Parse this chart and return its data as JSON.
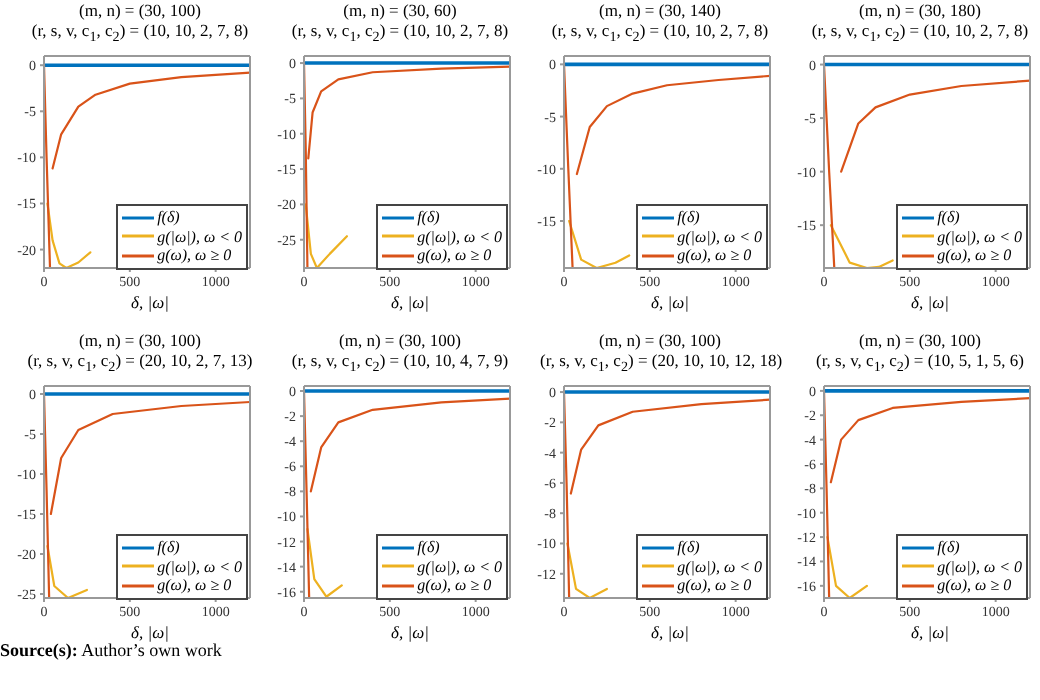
{
  "chart_data": [
    {
      "type": "line",
      "title": "(m, n) = (30, 100)",
      "subtitle": "(r, s, v, c$_{1}$, c$_{2}$) = (10, 10, 2, 7, 8)",
      "xlabel": "δ, |ω|",
      "xlim": [
        0,
        1200
      ],
      "xticks": [
        0,
        500,
        1000
      ],
      "ylim": [
        -22,
        1
      ],
      "yticks": [
        0,
        -5,
        -10,
        -15,
        -20
      ],
      "legend": "bottom right",
      "series": [
        {
          "name": "f(δ)",
          "color": "#0072bd",
          "x": [
            0,
            1200
          ],
          "values": [
            0,
            0
          ]
        },
        {
          "name": "g(|ω|), ω < 0",
          "color": "#edb120",
          "x": [
            20,
            50,
            90,
            130,
            200,
            270
          ],
          "values": [
            -15,
            -19,
            -21.5,
            -22,
            -21.4,
            -20.3
          ]
        },
        {
          "name": "g(ω), ω ≥ 0",
          "color": "#d95319",
          "x": [
            0,
            15,
            35,
            40,
            50,
            100,
            200,
            300,
            500,
            800,
            1200
          ],
          "values": [
            0,
            -10,
            -22,
            null,
            -11.2,
            -7.5,
            -4.5,
            -3.2,
            -2,
            -1.3,
            -0.8
          ]
        }
      ]
    },
    {
      "type": "line",
      "title": "(m, n) = (30, 60)",
      "subtitle": "(r, s, v, c$_{1}$, c$_{2}$) = (10, 10, 2, 7, 8)",
      "xlabel": "δ, |ω|",
      "xlim": [
        0,
        1200
      ],
      "xticks": [
        0,
        500,
        1000
      ],
      "ylim": [
        -29,
        1
      ],
      "yticks": [
        0,
        -5,
        -10,
        -15,
        -20,
        -25
      ],
      "legend": "bottom right",
      "series": [
        {
          "name": "f(δ)",
          "color": "#0072bd",
          "x": [
            0,
            1200
          ],
          "values": [
            0,
            0
          ]
        },
        {
          "name": "g(|ω|), ω < 0",
          "color": "#edb120",
          "x": [
            10,
            40,
            75,
            150,
            250
          ],
          "values": [
            -20,
            -27,
            -29,
            -27,
            -24.5
          ]
        },
        {
          "name": "g(ω), ω ≥ 0",
          "color": "#d95319",
          "x": [
            0,
            10,
            20,
            22,
            25,
            50,
            100,
            200,
            400,
            800,
            1200
          ],
          "values": [
            0,
            -12,
            -29,
            null,
            -13.5,
            -7,
            -4,
            -2.3,
            -1.3,
            -0.8,
            -0.5
          ]
        }
      ]
    },
    {
      "type": "line",
      "title": "(m, n) = (30, 140)",
      "subtitle": "(r, s, v, c$_{1}$, c$_{2}$) = (10, 10, 2, 7, 8)",
      "xlabel": "δ, |ω|",
      "xlim": [
        0,
        1200
      ],
      "xticks": [
        0,
        500,
        1000
      ],
      "ylim": [
        -19.5,
        0.8
      ],
      "yticks": [
        0,
        -5,
        -10,
        -15
      ],
      "legend": "bottom right",
      "series": [
        {
          "name": "f(δ)",
          "color": "#0072bd",
          "x": [
            0,
            1200
          ],
          "values": [
            0,
            0
          ]
        },
        {
          "name": "g(|ω|), ω < 0",
          "color": "#edb120",
          "x": [
            30,
            100,
            190,
            300,
            380
          ],
          "values": [
            -15,
            -18.7,
            -19.5,
            -19,
            -18.3
          ]
        },
        {
          "name": "g(ω), ω ≥ 0",
          "color": "#d95319",
          "x": [
            0,
            25,
            50,
            60,
            75,
            150,
            250,
            400,
            600,
            900,
            1200
          ],
          "values": [
            0,
            -10,
            -19.5,
            null,
            -10.5,
            -6,
            -4,
            -2.8,
            -2,
            -1.5,
            -1.1
          ]
        }
      ]
    },
    {
      "type": "line",
      "title": "(m, n) = (30, 180)",
      "subtitle": "(r, s, v, c$_{1}$, c$_{2}$) = (10, 10, 2, 7, 8)",
      "xlabel": "δ, |ω|",
      "xlim": [
        0,
        1200
      ],
      "xticks": [
        0,
        500,
        1000
      ],
      "ylim": [
        -19,
        0.8
      ],
      "yticks": [
        0,
        -5,
        -10,
        -15
      ],
      "legend": "bottom right",
      "series": [
        {
          "name": "f(δ)",
          "color": "#0072bd",
          "x": [
            0,
            1200
          ],
          "values": [
            0,
            0
          ]
        },
        {
          "name": "g(|ω|), ω < 0",
          "color": "#edb120",
          "x": [
            40,
            150,
            250,
            320,
            400
          ],
          "values": [
            -15,
            -18.5,
            -19,
            -18.9,
            -18.3
          ]
        },
        {
          "name": "g(ω), ω ≥ 0",
          "color": "#d95319",
          "x": [
            0,
            30,
            60,
            80,
            100,
            200,
            300,
            500,
            800,
            1200
          ],
          "values": [
            0,
            -10,
            -19,
            null,
            -10,
            -5.5,
            -4,
            -2.8,
            -2,
            -1.5
          ]
        }
      ]
    },
    {
      "type": "line",
      "title": "(m, n) = (30, 100)",
      "subtitle": "(r, s, v, c$_{1}$, c$_{2}$) = (20, 10, 2, 7, 13)",
      "xlabel": "δ, |ω|",
      "xlim": [
        0,
        1200
      ],
      "xticks": [
        0,
        500,
        1000
      ],
      "ylim": [
        -25.5,
        1
      ],
      "yticks": [
        0,
        -5,
        -10,
        -15,
        -20,
        -25
      ],
      "legend": "bottom right",
      "annotations": [
        "Source(s): Author’s own work"
      ],
      "series": [
        {
          "name": "f(δ)",
          "color": "#0072bd",
          "x": [
            0,
            1200
          ],
          "values": [
            0,
            0
          ]
        },
        {
          "name": "g(|ω|), ω < 0",
          "color": "#edb120",
          "x": [
            20,
            60,
            140,
            250
          ],
          "values": [
            -19,
            -24,
            -25.5,
            -24.5
          ]
        },
        {
          "name": "g(ω), ω ≥ 0",
          "color": "#d95319",
          "x": [
            0,
            15,
            30,
            35,
            40,
            100,
            200,
            400,
            800,
            1200
          ],
          "values": [
            0,
            -12,
            -25.5,
            null,
            -15,
            -8,
            -4.5,
            -2.5,
            -1.5,
            -1
          ]
        }
      ]
    },
    {
      "type": "line",
      "title": "(m, n) = (30, 100)",
      "subtitle": "(r, s, v, c$_{1}$, c$_{2}$) = (10, 10, 4, 7, 9)",
      "xlabel": "δ, |ω|",
      "xlim": [
        0,
        1200
      ],
      "xticks": [
        0,
        500,
        1000
      ],
      "ylim": [
        -16.5,
        0.4
      ],
      "yticks": [
        0,
        -2,
        -4,
        -6,
        -8,
        -10,
        -12,
        -14,
        -16
      ],
      "legend": "bottom right",
      "series": [
        {
          "name": "f(δ)",
          "color": "#0072bd",
          "x": [
            0,
            1200
          ],
          "values": [
            0,
            0
          ]
        },
        {
          "name": "g(|ω|), ω < 0",
          "color": "#edb120",
          "x": [
            20,
            60,
            130,
            220
          ],
          "values": [
            -11,
            -15,
            -16.4,
            -15.5
          ]
        },
        {
          "name": "g(ω), ω ≥ 0",
          "color": "#d95319",
          "x": [
            0,
            15,
            30,
            35,
            40,
            100,
            200,
            400,
            800,
            1200
          ],
          "values": [
            0,
            -8,
            -16.5,
            null,
            -8,
            -4.5,
            -2.5,
            -1.5,
            -0.9,
            -0.6
          ]
        }
      ]
    },
    {
      "type": "line",
      "title": "(m, n) = (30, 100)",
      "subtitle": "(r, s, v, c$_{1}$, c$_{2}$) = (20, 10, 10, 12, 18)",
      "xlabel": "δ, |ω|",
      "xlim": [
        0,
        1200
      ],
      "xticks": [
        0,
        500,
        1000
      ],
      "ylim": [
        -13.6,
        0.4
      ],
      "yticks": [
        0,
        -2,
        -4,
        -6,
        -8,
        -10,
        -12
      ],
      "legend": "bottom right",
      "series": [
        {
          "name": "f(δ)",
          "color": "#0072bd",
          "x": [
            0,
            1200
          ],
          "values": [
            0,
            0
          ]
        },
        {
          "name": "g(|ω|), ω < 0",
          "color": "#edb120",
          "x": [
            20,
            70,
            150,
            250
          ],
          "values": [
            -10,
            -13,
            -13.6,
            -13
          ]
        },
        {
          "name": "g(ω), ω ≥ 0",
          "color": "#d95319",
          "x": [
            0,
            15,
            30,
            35,
            40,
            100,
            200,
            400,
            800,
            1200
          ],
          "values": [
            0,
            -6,
            -13.6,
            null,
            -6.7,
            -3.8,
            -2.2,
            -1.3,
            -0.8,
            -0.5
          ]
        }
      ]
    },
    {
      "type": "line",
      "title": "(m, n) = (30, 100)",
      "subtitle": "(r, s, v, c$_{1}$, c$_{2}$) = (10, 5, 1, 5, 6)",
      "xlabel": "δ, |ω|",
      "xlim": [
        0,
        1200
      ],
      "xticks": [
        0,
        500,
        1000
      ],
      "ylim": [
        -17,
        0.4
      ],
      "yticks": [
        0,
        -2,
        -4,
        -6,
        -8,
        -10,
        -12,
        -14,
        -16
      ],
      "legend": "bottom right",
      "series": [
        {
          "name": "f(δ)",
          "color": "#0072bd",
          "x": [
            0,
            1200
          ],
          "values": [
            0,
            0
          ]
        },
        {
          "name": "g(|ω|), ω < 0",
          "color": "#edb120",
          "x": [
            20,
            70,
            150,
            250
          ],
          "values": [
            -12,
            -16,
            -17,
            -16
          ]
        },
        {
          "name": "g(ω), ω ≥ 0",
          "color": "#d95319",
          "x": [
            0,
            15,
            30,
            35,
            40,
            100,
            200,
            400,
            800,
            1200
          ],
          "values": [
            0,
            -8,
            -17,
            null,
            -7.5,
            -4,
            -2.4,
            -1.4,
            -0.9,
            -0.6
          ]
        }
      ]
    }
  ]
}
